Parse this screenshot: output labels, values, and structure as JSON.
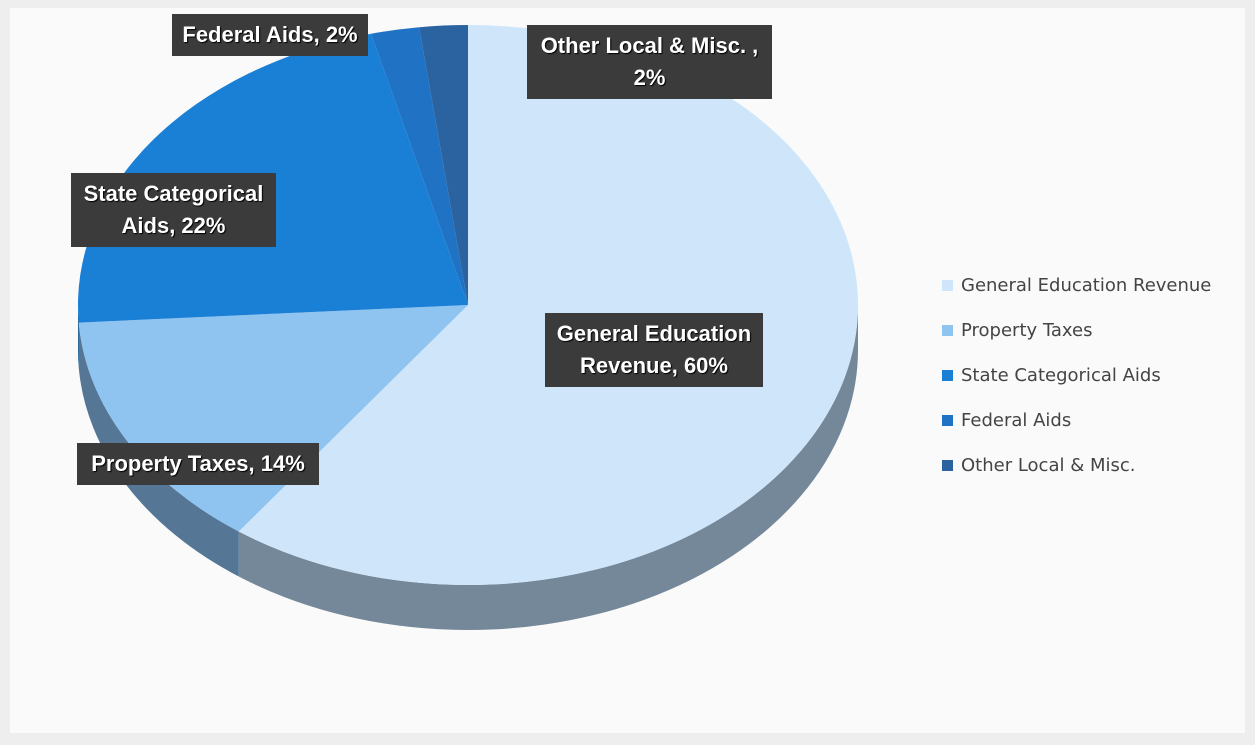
{
  "chart_data": {
    "type": "pie",
    "categories": [
      "General Education Revenue",
      "Property Taxes",
      "State Categorical Aids",
      "Federal Aids",
      "Other Local & Misc."
    ],
    "values": [
      60,
      14,
      22,
      2,
      2
    ],
    "value_labels": [
      "General Education Revenue, 60%",
      "Property Taxes, 14%",
      "State Categorical Aids, 22%",
      "Federal Aids, 2%",
      "Other Local & Misc. , 2%"
    ],
    "colors": [
      "#cfe6fa",
      "#8fc3f0",
      "#1a80d6",
      "#1f72c4",
      "#2b62a0"
    ],
    "legend": "right"
  }
}
